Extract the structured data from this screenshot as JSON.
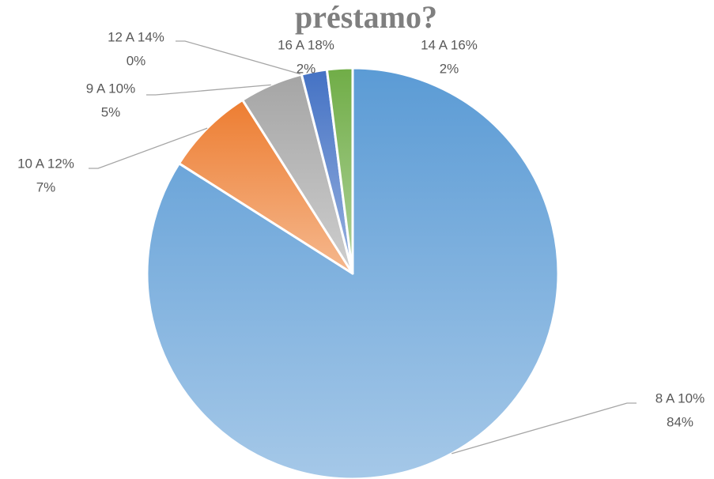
{
  "chart_data": {
    "type": "pie",
    "title": "préstamo?",
    "categories": [
      "8 A 10%",
      "10 A 12%",
      "9 A 10%",
      "12 A 14%",
      "16 A 18%",
      "14 A 16%"
    ],
    "values": [
      84,
      7,
      5,
      0,
      2,
      2
    ],
    "value_labels": [
      "84%",
      "7%",
      "5%",
      "0%",
      "2%",
      "2%"
    ],
    "colors": [
      "#5b9bd5",
      "#ed7d31",
      "#a5a5a5",
      "#ffc000",
      "#4472c4",
      "#70ad47"
    ]
  }
}
